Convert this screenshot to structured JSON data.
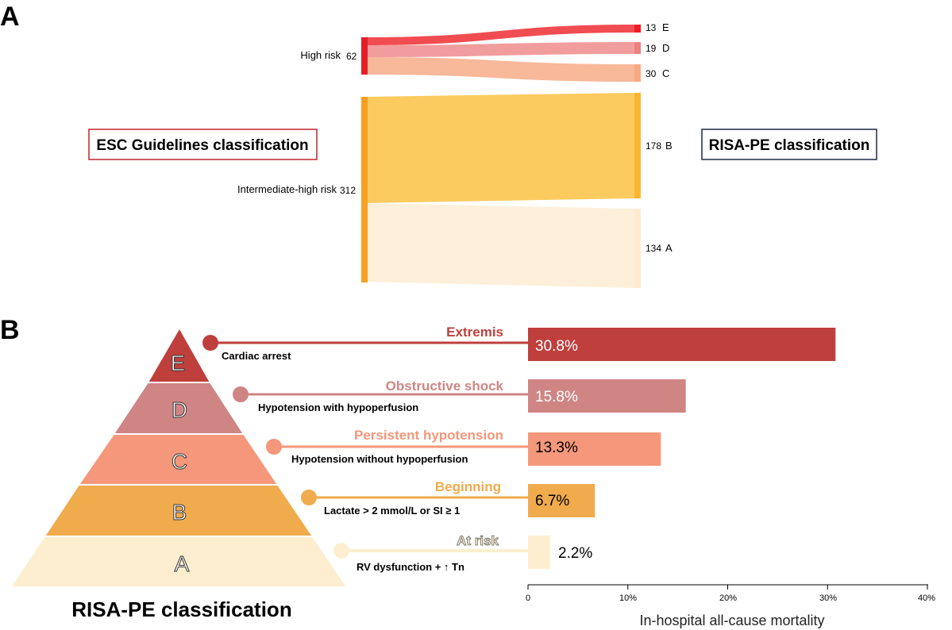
{
  "panel_a": {
    "letter": "A",
    "left_box_label": "ESC Guidelines classification",
    "right_box_label": "RISA-PE classification",
    "sources": [
      {
        "label": "High risk",
        "count": "62"
      },
      {
        "label": "Intermediate-high risk",
        "count": "312"
      }
    ],
    "targets": [
      {
        "class": "E",
        "count": "13"
      },
      {
        "class": "D",
        "count": "19"
      },
      {
        "class": "C",
        "count": "30"
      },
      {
        "class": "B",
        "count": "178"
      },
      {
        "class": "A",
        "count": "134"
      }
    ]
  },
  "panel_b": {
    "letter": "B",
    "pyramid_title": "RISA-PE classification",
    "x_axis_label": "In-hospital all-cause mortality",
    "levels": [
      {
        "class": "E",
        "stage": "Extremis",
        "criterion": "Cardiac arrest",
        "mortality_label": "30.8%",
        "color": "#bf3f3d"
      },
      {
        "class": "D",
        "stage": "Obstructive shock",
        "criterion": "Hypotension with hypoperfusion",
        "mortality_label": "15.8%",
        "color": "#cf8584"
      },
      {
        "class": "C",
        "stage": "Persistent hypotension",
        "criterion": "Hypotension without hypoperfusion",
        "mortality_label": "13.3%",
        "color": "#f5977a"
      },
      {
        "class": "B",
        "stage": "Beginning",
        "criterion": "Lactate > 2 mmol/L or SI  ≥ 1",
        "mortality_label": "6.7%",
        "color": "#f0ab4d"
      },
      {
        "class": "A",
        "stage": "At risk",
        "criterion": "RV dysfunction + ↑ Tn",
        "mortality_label": "2.2%",
        "color": "#fdeecf"
      }
    ],
    "x_ticks": [
      "0",
      "10%",
      "20%",
      "30%",
      "40%"
    ]
  },
  "chart_data": [
    {
      "type": "sankey",
      "sources": [
        "High risk",
        "Intermediate-high risk"
      ],
      "source_totals": [
        62,
        312
      ],
      "targets": [
        "E",
        "D",
        "C",
        "B",
        "A"
      ],
      "target_totals": [
        13,
        19,
        30,
        178,
        134
      ],
      "flows": [
        {
          "from": "High risk",
          "to": "E",
          "value": 13
        },
        {
          "from": "High risk",
          "to": "D",
          "value": 19
        },
        {
          "from": "High risk",
          "to": "C",
          "value": 30
        },
        {
          "from": "Intermediate-high risk",
          "to": "B",
          "value": 178
        },
        {
          "from": "Intermediate-high risk",
          "to": "A",
          "value": 134
        }
      ],
      "colors": {
        "E": "#ee1c25",
        "D": "#ef8080",
        "C": "#f7a982",
        "B": "#fbbf45",
        "A": "#fdebd0",
        "High risk": "#e41e26",
        "Intermediate-high risk": "#f7a021"
      }
    },
    {
      "type": "bar",
      "orientation": "horizontal",
      "categories": [
        "E",
        "D",
        "C",
        "B",
        "A"
      ],
      "values": [
        30.8,
        15.8,
        13.3,
        6.7,
        2.2
      ],
      "xlabel": "In-hospital all-cause mortality",
      "xlim": [
        0,
        40
      ],
      "x_ticks": [
        0,
        10,
        20,
        30,
        40
      ]
    }
  ]
}
